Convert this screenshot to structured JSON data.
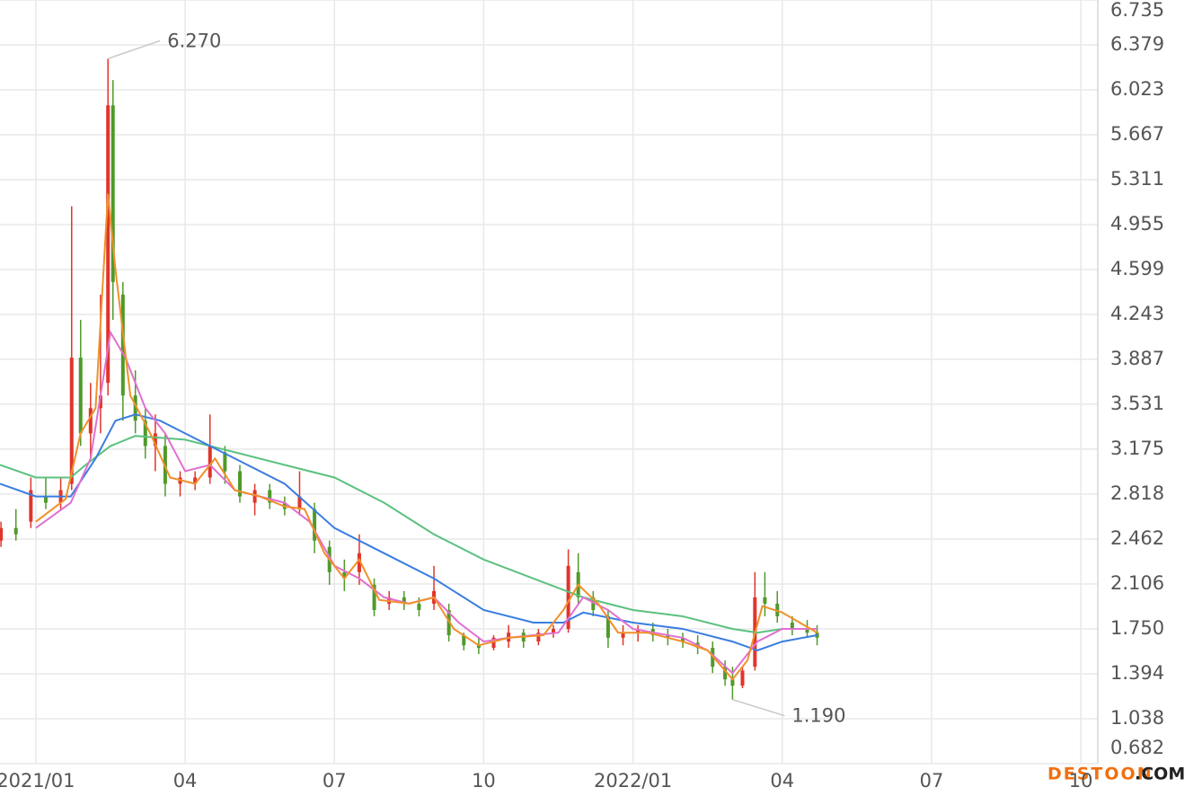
{
  "chart_data": {
    "type": "candlestick",
    "up_color": "#e0352b",
    "down_color": "#4f9a2a",
    "grid": true,
    "xlim": [
      -0.72,
      21.34
    ],
    "ylim": [
      0.682,
      6.735
    ],
    "yticks": [
      6.735,
      6.379,
      6.023,
      5.667,
      5.311,
      4.955,
      4.599,
      4.243,
      3.887,
      3.531,
      3.175,
      2.818,
      2.462,
      2.106,
      {
        "value": 1.75,
        "label": "1.750"
      },
      1.394,
      1.038,
      0.682
    ],
    "xticks": [
      {
        "value": 0,
        "label": "2021/01"
      },
      {
        "value": 3,
        "label": "04"
      },
      {
        "value": 6,
        "label": "07"
      },
      {
        "value": 9,
        "label": "10"
      },
      {
        "value": 12,
        "label": "2022/01"
      },
      {
        "value": 15,
        "label": "04"
      },
      {
        "value": 18,
        "label": "07"
      },
      {
        "value": 21,
        "label": "10"
      }
    ],
    "candles": {
      "x": [
        -0.7,
        -0.4,
        -0.1,
        0.2,
        0.5,
        0.72,
        0.9,
        1.1,
        1.3,
        1.45,
        1.55,
        1.75,
        2.0,
        2.2,
        2.4,
        2.6,
        2.9,
        3.2,
        3.5,
        3.8,
        4.1,
        4.4,
        4.7,
        5.0,
        5.3,
        5.6,
        5.9,
        6.2,
        6.5,
        6.8,
        7.1,
        7.4,
        7.7,
        8.0,
        8.3,
        8.6,
        8.9,
        9.2,
        9.5,
        9.8,
        10.1,
        10.4,
        10.7,
        10.9,
        11.2,
        11.5,
        11.8,
        12.1,
        12.4,
        12.7,
        13.0,
        13.3,
        13.6,
        13.85,
        14.0,
        14.2,
        14.45,
        14.65,
        14.9,
        15.2,
        15.5,
        15.7
      ],
      "open": [
        2.45,
        2.55,
        2.6,
        2.8,
        2.75,
        2.9,
        3.9,
        3.3,
        3.5,
        3.7,
        5.9,
        4.4,
        3.6,
        3.4,
        3.2,
        3.2,
        2.9,
        2.9,
        2.95,
        3.15,
        3.0,
        2.75,
        2.85,
        2.75,
        2.7,
        2.7,
        2.4,
        2.2,
        2.2,
        2.1,
        1.95,
        2.0,
        1.95,
        1.95,
        1.9,
        1.7,
        1.62,
        1.6,
        1.65,
        1.72,
        1.65,
        1.72,
        1.75,
        2.2,
        2.0,
        1.85,
        1.68,
        1.72,
        1.75,
        1.7,
        1.68,
        1.64,
        1.6,
        1.45,
        1.35,
        1.3,
        1.45,
        2.0,
        1.95,
        1.8,
        1.75,
        1.72
      ],
      "high": [
        2.6,
        2.7,
        2.95,
        2.95,
        2.95,
        5.1,
        4.2,
        3.7,
        4.4,
        6.27,
        6.1,
        4.5,
        3.8,
        3.5,
        3.45,
        3.3,
        3.0,
        3.0,
        3.45,
        3.2,
        3.05,
        2.9,
        2.9,
        2.8,
        3.0,
        2.75,
        2.45,
        2.3,
        2.5,
        2.15,
        2.05,
        2.05,
        2.0,
        2.25,
        1.95,
        1.72,
        1.68,
        1.7,
        1.78,
        1.75,
        1.75,
        1.78,
        2.38,
        2.35,
        2.05,
        1.9,
        1.78,
        1.78,
        1.8,
        1.75,
        1.72,
        1.7,
        1.65,
        1.5,
        1.45,
        1.45,
        2.2,
        2.2,
        2.05,
        1.85,
        1.82,
        1.78
      ],
      "low": [
        2.4,
        2.45,
        2.55,
        2.7,
        2.7,
        2.85,
        3.2,
        3.1,
        3.3,
        3.6,
        4.2,
        3.4,
        3.3,
        3.1,
        3.0,
        2.8,
        2.8,
        2.85,
        2.9,
        2.9,
        2.75,
        2.65,
        2.7,
        2.65,
        2.65,
        2.35,
        2.1,
        2.05,
        2.1,
        1.85,
        1.9,
        1.9,
        1.85,
        1.9,
        1.65,
        1.58,
        1.55,
        1.58,
        1.6,
        1.6,
        1.62,
        1.68,
        1.72,
        1.95,
        1.85,
        1.6,
        1.62,
        1.65,
        1.65,
        1.62,
        1.6,
        1.55,
        1.4,
        1.3,
        1.19,
        1.28,
        1.42,
        1.85,
        1.8,
        1.7,
        1.68,
        1.62
      ],
      "close": [
        2.55,
        2.5,
        2.85,
        2.75,
        2.85,
        3.9,
        3.3,
        3.5,
        3.6,
        5.9,
        4.5,
        3.6,
        3.4,
        3.2,
        3.3,
        2.9,
        2.95,
        2.95,
        3.2,
        3.0,
        2.8,
        2.85,
        2.75,
        2.7,
        2.8,
        2.45,
        2.2,
        2.15,
        2.35,
        1.9,
        2.0,
        1.95,
        1.9,
        2.05,
        1.7,
        1.62,
        1.6,
        1.68,
        1.72,
        1.65,
        1.72,
        1.75,
        2.25,
        2.0,
        1.9,
        1.68,
        1.72,
        1.75,
        1.7,
        1.68,
        1.65,
        1.6,
        1.45,
        1.35,
        1.3,
        1.42,
        2.0,
        1.95,
        1.85,
        1.75,
        1.72,
        1.68
      ]
    },
    "series": [
      {
        "color": "#5cc17f",
        "x": [
          -0.72,
          0,
          0.7,
          1.0,
          1.5,
          2.0,
          3.0,
          4.0,
          5.0,
          6.0,
          7.0,
          8.0,
          9.0,
          10.0,
          11.0,
          12.0,
          13.0,
          14.0,
          14.5,
          15.0,
          15.7
        ],
        "values": [
          3.05,
          2.95,
          2.95,
          3.05,
          3.2,
          3.28,
          3.25,
          3.15,
          3.05,
          2.95,
          2.75,
          2.5,
          2.3,
          2.15,
          2.0,
          1.9,
          1.85,
          1.75,
          1.72,
          1.75,
          1.75
        ]
      },
      {
        "color": "#3a7de0",
        "x": [
          -0.72,
          0,
          0.7,
          1.2,
          1.6,
          2.0,
          2.5,
          3.0,
          3.5,
          4.0,
          5.0,
          6.0,
          7.0,
          8.0,
          9.0,
          10.0,
          10.6,
          11.0,
          12.0,
          13.0,
          14.0,
          14.5,
          15.0,
          15.7
        ],
        "values": [
          2.9,
          2.8,
          2.8,
          3.1,
          3.4,
          3.45,
          3.4,
          3.3,
          3.2,
          3.1,
          2.9,
          2.55,
          2.35,
          2.15,
          1.9,
          1.8,
          1.8,
          1.88,
          1.8,
          1.75,
          1.65,
          1.58,
          1.65,
          1.7
        ]
      },
      {
        "color": "#e070d0",
        "x": [
          0,
          0.7,
          1.1,
          1.5,
          1.8,
          2.2,
          2.6,
          3.0,
          3.5,
          4.0,
          4.5,
          5.0,
          5.5,
          6.0,
          6.5,
          7.0,
          7.5,
          8.0,
          8.5,
          9.0,
          9.5,
          10.0,
          10.5,
          11.0,
          11.5,
          12.0,
          13.0,
          13.5,
          14.0,
          14.5,
          15.0,
          15.7
        ],
        "values": [
          2.55,
          2.75,
          3.1,
          4.1,
          3.9,
          3.5,
          3.3,
          3.0,
          3.05,
          2.85,
          2.8,
          2.75,
          2.6,
          2.25,
          2.15,
          2.0,
          1.95,
          2.0,
          1.8,
          1.65,
          1.68,
          1.7,
          1.72,
          2.0,
          1.9,
          1.75,
          1.68,
          1.58,
          1.4,
          1.65,
          1.75,
          1.75
        ]
      },
      {
        "color": "#f0902a",
        "x": [
          0,
          0.6,
          0.9,
          1.2,
          1.45,
          1.6,
          1.9,
          2.3,
          2.7,
          3.2,
          3.6,
          4.0,
          4.5,
          5.0,
          5.4,
          5.8,
          6.2,
          6.5,
          6.9,
          7.5,
          8.0,
          8.4,
          8.9,
          9.5,
          10.2,
          10.6,
          10.9,
          11.3,
          11.7,
          12.3,
          13.0,
          13.5,
          14.0,
          14.3,
          14.6,
          15.0,
          15.7
        ],
        "values": [
          2.6,
          2.78,
          3.3,
          3.5,
          5.2,
          4.6,
          3.6,
          3.3,
          2.95,
          2.9,
          3.1,
          2.85,
          2.8,
          2.72,
          2.7,
          2.35,
          2.15,
          2.3,
          1.98,
          1.95,
          2.0,
          1.75,
          1.62,
          1.68,
          1.7,
          1.9,
          2.1,
          1.95,
          1.72,
          1.72,
          1.65,
          1.58,
          1.35,
          1.5,
          1.93,
          1.88,
          1.72
        ]
      }
    ],
    "annotations": [
      {
        "x": 1.45,
        "value": 6.27,
        "label": "6.270"
      },
      {
        "x": 14.0,
        "value": 1.19,
        "label": "1.190"
      }
    ],
    "watermark": {
      "brand": "DESTOON",
      "suffix": ".COM"
    }
  }
}
